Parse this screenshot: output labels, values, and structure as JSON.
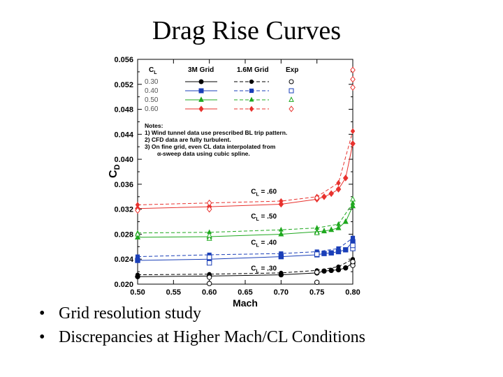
{
  "slide": {
    "title": "Drag Rise Curves",
    "bullets": [
      "Grid resolution study",
      "Discrepancies at Higher Mach/CL Conditions"
    ]
  },
  "chart_data": {
    "type": "line",
    "xlabel": "Mach",
    "ylabel": "CD",
    "ylabel_main": "C",
    "ylabel_sub": "D",
    "xlim": [
      0.5,
      0.8
    ],
    "ylim": [
      0.02,
      0.056
    ],
    "xticks": [
      0.5,
      0.55,
      0.6,
      0.65,
      0.7,
      0.75,
      0.8
    ],
    "xtick_labels": [
      "0.50",
      "0.55",
      "0.60",
      "0.65",
      "0.70",
      "0.75",
      "0.80"
    ],
    "yticks": [
      0.02,
      0.024,
      0.028,
      0.032,
      0.036,
      0.04,
      0.044,
      0.048,
      0.052,
      0.056
    ],
    "ytick_labels": [
      "0.020",
      "0.024",
      "0.028",
      "0.032",
      "0.036",
      "0.040",
      "0.044",
      "0.048",
      "0.052",
      "0.056"
    ],
    "legend": {
      "position": "top-left",
      "headers": [
        "C",
        "3M Grid",
        "1.6M Grid",
        "Exp"
      ],
      "cl_header_main": "C",
      "cl_header_sub": "L",
      "rows": [
        {
          "cl": "0.30",
          "color": "#000000",
          "marker": "circle"
        },
        {
          "cl": "0.40",
          "color": "#1a3fb8",
          "marker": "square"
        },
        {
          "cl": "0.50",
          "color": "#1fa81f",
          "marker": "triangle"
        },
        {
          "cl": "0.60",
          "color": "#e8322e",
          "marker": "diamond"
        }
      ]
    },
    "notes": [
      "Notes:",
      "1) Wind tunnel data use prescribed BL trip pattern.",
      "2) CFD data are fully turbulent.",
      "3) On fine grid, even CL data interpolated from",
      "α-sweep data using cubic spline."
    ],
    "curve_labels": [
      {
        "main": "C",
        "sub": "L",
        "value": " = .60",
        "x": 0.658,
        "y": 0.0345
      },
      {
        "main": "C",
        "sub": "L",
        "value": " = .50",
        "x": 0.658,
        "y": 0.0305
      },
      {
        "main": "C",
        "sub": "L",
        "value": " = .40",
        "x": 0.658,
        "y": 0.0263
      },
      {
        "main": "C",
        "sub": "L",
        "value": " = .30",
        "x": 0.658,
        "y": 0.0222
      }
    ],
    "series": [
      {
        "name": "CL 0.30 3M Grid",
        "cl": "0.30",
        "kind": "3M",
        "color": "#000000",
        "marker": "circle",
        "x": [
          0.5,
          0.6,
          0.7,
          0.75,
          0.76,
          0.77,
          0.78,
          0.79,
          0.8
        ],
        "y": [
          0.0212,
          0.0213,
          0.0215,
          0.0218,
          0.0221,
          0.0222,
          0.0223,
          0.0226,
          0.0234
        ]
      },
      {
        "name": "CL 0.30 1.6M Grid",
        "cl": "0.30",
        "kind": "1.6M",
        "color": "#000000",
        "marker": "circle",
        "x": [
          0.5,
          0.6,
          0.7,
          0.75,
          0.78,
          0.8
        ],
        "y": [
          0.0215,
          0.0216,
          0.0218,
          0.0222,
          0.0228,
          0.024
        ]
      },
      {
        "name": "CL 0.30 Exp",
        "cl": "0.30",
        "kind": "Exp",
        "color": "#000000",
        "marker": "circle",
        "x": [
          0.6,
          0.6,
          0.75,
          0.75,
          0.8,
          0.8
        ],
        "y": [
          0.0211,
          0.0201,
          0.0219,
          0.0203,
          0.023,
          0.0236
        ]
      },
      {
        "name": "CL 0.40 3M Grid",
        "cl": "0.40",
        "kind": "3M",
        "color": "#1a3fb8",
        "marker": "square",
        "x": [
          0.5,
          0.6,
          0.7,
          0.75,
          0.76,
          0.77,
          0.78,
          0.79,
          0.8
        ],
        "y": [
          0.0238,
          0.024,
          0.0244,
          0.0247,
          0.0249,
          0.025,
          0.0252,
          0.0255,
          0.0268
        ]
      },
      {
        "name": "CL 0.40 1.6M Grid",
        "cl": "0.40",
        "kind": "1.6M",
        "color": "#1a3fb8",
        "marker": "square",
        "x": [
          0.5,
          0.6,
          0.7,
          0.75,
          0.78,
          0.8
        ],
        "y": [
          0.0244,
          0.0247,
          0.0249,
          0.0252,
          0.0257,
          0.0274
        ]
      },
      {
        "name": "CL 0.40 Exp",
        "cl": "0.40",
        "kind": "Exp",
        "color": "#1a3fb8",
        "marker": "square",
        "x": [
          0.6,
          0.6,
          0.75,
          0.8,
          0.8
        ],
        "y": [
          0.0243,
          0.0234,
          0.0248,
          0.0257,
          0.0262
        ]
      },
      {
        "name": "CL 0.50 3M Grid",
        "cl": "0.50",
        "kind": "3M",
        "color": "#1fa81f",
        "marker": "triangle",
        "x": [
          0.5,
          0.6,
          0.7,
          0.75,
          0.76,
          0.77,
          0.78,
          0.79,
          0.8
        ],
        "y": [
          0.0275,
          0.0276,
          0.028,
          0.0284,
          0.0285,
          0.0287,
          0.029,
          0.03,
          0.0325
        ]
      },
      {
        "name": "CL 0.50 1.6M Grid",
        "cl": "0.50",
        "kind": "1.6M",
        "color": "#1fa81f",
        "marker": "triangle",
        "x": [
          0.5,
          0.6,
          0.7,
          0.75,
          0.78,
          0.8
        ],
        "y": [
          0.0282,
          0.0283,
          0.0287,
          0.029,
          0.0296,
          0.033
        ]
      },
      {
        "name": "CL 0.50 Exp",
        "cl": "0.50",
        "kind": "Exp",
        "color": "#1fa81f",
        "marker": "triangle",
        "x": [
          0.5,
          0.6,
          0.6,
          0.75,
          0.8
        ],
        "y": [
          0.028,
          0.0273,
          0.0278,
          0.0282,
          0.0336
        ]
      },
      {
        "name": "CL 0.60 3M Grid",
        "cl": "0.60",
        "kind": "3M",
        "color": "#e8322e",
        "marker": "diamond",
        "x": [
          0.5,
          0.6,
          0.7,
          0.75,
          0.76,
          0.77,
          0.78,
          0.79,
          0.8
        ],
        "y": [
          0.0321,
          0.0324,
          0.0328,
          0.0336,
          0.034,
          0.0345,
          0.0352,
          0.037,
          0.0425
        ]
      },
      {
        "name": "CL 0.60 1.6M Grid",
        "cl": "0.60",
        "kind": "1.6M",
        "color": "#e8322e",
        "marker": "diamond",
        "x": [
          0.5,
          0.6,
          0.7,
          0.75,
          0.78,
          0.8
        ],
        "y": [
          0.0327,
          0.033,
          0.0333,
          0.034,
          0.0362,
          0.0445
        ]
      },
      {
        "name": "CL 0.60 Exp",
        "cl": "0.60",
        "kind": "Exp",
        "color": "#e8322e",
        "marker": "diamond",
        "x": [
          0.5,
          0.6,
          0.6,
          0.75,
          0.8,
          0.8,
          0.8
        ],
        "y": [
          0.0318,
          0.033,
          0.032,
          0.0338,
          0.0515,
          0.0528,
          0.0543
        ]
      }
    ]
  }
}
